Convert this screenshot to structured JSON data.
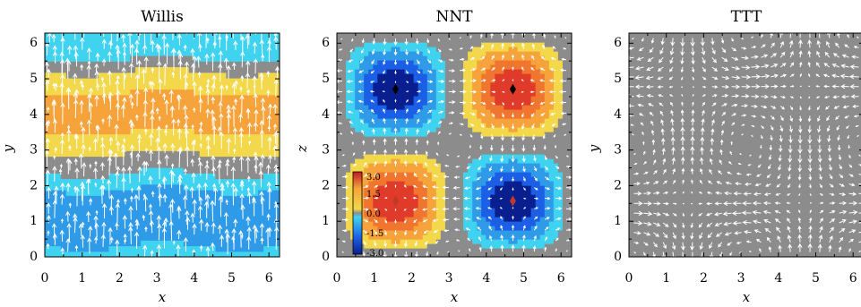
{
  "chart_data": [
    {
      "type": "heatmap",
      "title": "Willis",
      "xlabel": "x",
      "ylabel": "y",
      "xlim": [
        0,
        6.2832
      ],
      "ylim": [
        0,
        6.2832
      ],
      "x_ticks": [
        "0",
        "1",
        "2",
        "3",
        "4",
        "5",
        "6"
      ],
      "y_ticks": [
        "0",
        "1",
        "2",
        "3",
        "4",
        "5",
        "6"
      ],
      "field": "colored filled contours, positive band 2.9-5.2, negative bands below 2.3 and above 5.6",
      "vectors": "vertical white arrows"
    },
    {
      "type": "heatmap",
      "title": "NNT",
      "xlabel": "x",
      "ylabel": "z",
      "xlim": [
        0,
        6.2832
      ],
      "ylim": [
        0,
        6.2832
      ],
      "x_ticks": [
        "0",
        "1",
        "2",
        "3",
        "4",
        "5",
        "6"
      ],
      "y_ticks": [
        "0",
        "1",
        "2",
        "3",
        "4",
        "5",
        "6"
      ],
      "colorbar": {
        "ticks": [
          "3.0",
          "1.5",
          "0.0",
          "-1.5",
          "-3.0"
        ],
        "range": [
          -3.0,
          3.0
        ]
      },
      "markers": [
        {
          "x": 1.57,
          "y": 4.71,
          "color": "#000000"
        },
        {
          "x": 4.71,
          "y": 4.71,
          "color": "#000000"
        },
        {
          "x": 1.57,
          "y": 1.57,
          "color": "#c0392b"
        },
        {
          "x": 4.71,
          "y": 1.57,
          "color": "#c0392b"
        }
      ]
    },
    {
      "type": "heatmap",
      "title": "TTT",
      "xlabel": "x",
      "ylabel": "y",
      "xlim": [
        0,
        6.2832
      ],
      "ylim": [
        0,
        6.2832
      ],
      "x_ticks": [
        "0",
        "1",
        "2",
        "3",
        "4",
        "5",
        "6"
      ],
      "y_ticks": [
        "0",
        "1",
        "2",
        "3",
        "4",
        "5",
        "6"
      ],
      "field": "uniform gray background with white circulation vectors"
    }
  ],
  "colors": {
    "gray": "#8c8c8c",
    "cyan": "#3fd3f0",
    "blue": "#1a5fe6",
    "yellow": "#f2d84a",
    "orange": "#f5a33a",
    "red": "#e8452a",
    "arrow": "#ffffff"
  }
}
